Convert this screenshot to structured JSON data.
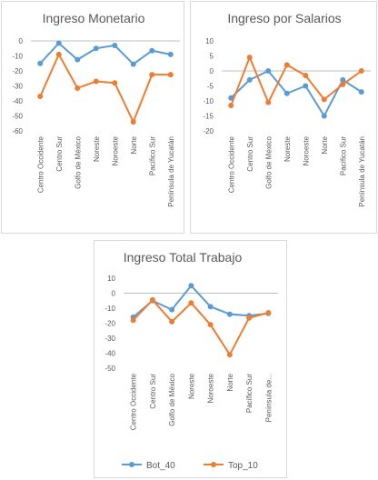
{
  "colors": {
    "bot": "#5b9bd5",
    "top": "#ed7d31",
    "axis": "#bfbfbf",
    "text": "#595959"
  },
  "legend": {
    "bot": "Bot_40",
    "top": "Top_10"
  },
  "chart_data": [
    {
      "type": "line",
      "title": "Ingreso Monetario",
      "categories": [
        "Centro Occidente",
        "Centro Sur",
        "Golfo de México",
        "Noreste",
        "Noroeste",
        "Norte",
        "Pacífico Sur",
        "Península de Yucatán"
      ],
      "ylim": [
        -60,
        0
      ],
      "yticks": [
        0,
        -10,
        -20,
        -30,
        -40,
        -50,
        -60
      ],
      "series": [
        {
          "name": "Bot_40",
          "values": [
            -15,
            -1.5,
            -12.5,
            -5,
            -3,
            -15.5,
            -6.5,
            -9
          ]
        },
        {
          "name": "Top_10",
          "values": [
            -37,
            -9,
            -31.5,
            -27,
            -28,
            -54,
            -22.5,
            -22.5
          ]
        }
      ],
      "legend": "bottom",
      "grid": false
    },
    {
      "type": "line",
      "title": "Ingreso por Salarios",
      "categories": [
        "Centro Occidente",
        "Centro Sur",
        "Golfo de México",
        "Noreste",
        "Noroeste",
        "Norte",
        "Pacífico Sur",
        "Península de Yucatán"
      ],
      "ylim": [
        -20,
        10
      ],
      "yticks": [
        10,
        5,
        0,
        -5,
        -10,
        -15,
        -20
      ],
      "series": [
        {
          "name": "Bot_40",
          "values": [
            -9,
            -3,
            0,
            -7.5,
            -5,
            -15,
            -3,
            -7
          ]
        },
        {
          "name": "Top_10",
          "values": [
            -11.5,
            4.5,
            -10.5,
            2,
            -1.5,
            -9.5,
            -4.5,
            0
          ]
        }
      ],
      "legend": "bottom",
      "grid": false
    },
    {
      "type": "line",
      "title": "Ingreso Total Trabajo",
      "categories": [
        "Centro Occidente",
        "Centro Sur",
        "Golfo de México",
        "Noreste",
        "Noroeste",
        "Norte",
        "Pacífico Sur",
        "Península de..."
      ],
      "ylim": [
        -50,
        10
      ],
      "yticks": [
        10,
        0,
        -10,
        -20,
        -30,
        -40,
        -50
      ],
      "series": [
        {
          "name": "Bot_40",
          "values": [
            -16,
            -5,
            -11,
            5,
            -9,
            -14,
            -15,
            -13.5
          ]
        },
        {
          "name": "Top_10",
          "values": [
            -18,
            -4.5,
            -19,
            -6.5,
            -21,
            -41,
            -16.5,
            -13
          ]
        }
      ],
      "legend": "bottom",
      "grid": false
    }
  ]
}
